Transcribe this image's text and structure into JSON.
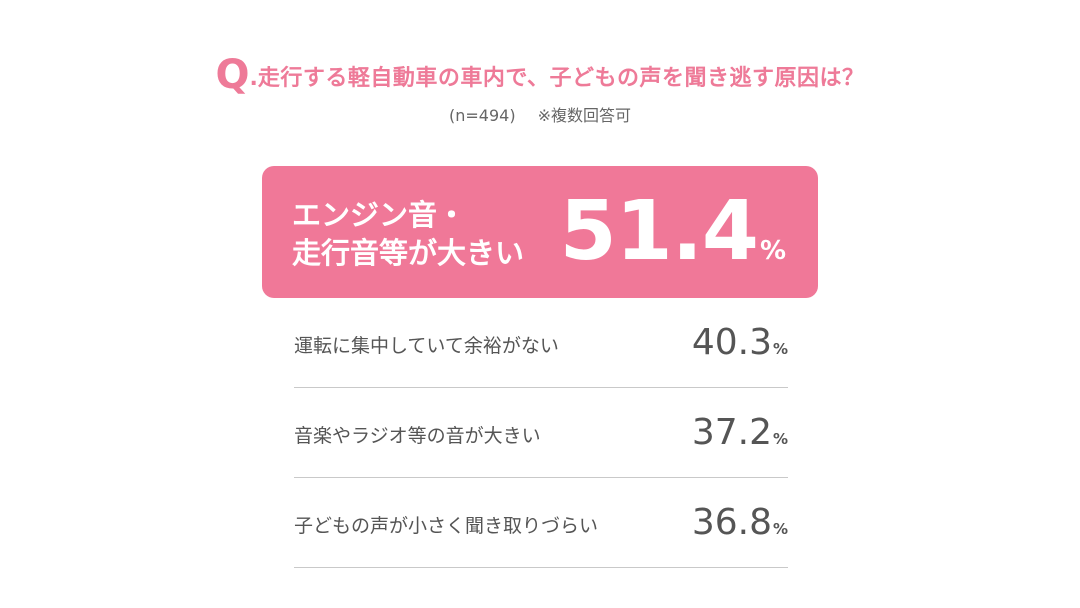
{
  "question": {
    "prefix": "Q",
    "dot": ".",
    "text": "走行する軽自動車の車内で、子どもの声を聞き逃す原因は？"
  },
  "sample": {
    "n": "(n=494)",
    "note": "※複数回答可"
  },
  "colors": {
    "accent": "#f07898",
    "title": "#ee7a98",
    "text": "#555555",
    "divider": "#c9c9c9"
  },
  "chart_data": {
    "type": "table",
    "unit": "%",
    "categories": [
      "エンジン音・走行音等が大きい",
      "運転に集中していて余裕がない",
      "音楽やラジオ等の音が大きい",
      "子どもの声が小さく聞き取りづらい"
    ],
    "values": [
      51.4,
      40.3,
      37.2,
      36.8
    ],
    "top": {
      "label_line1": "エンジン音・",
      "label_line2": "走行音等が大きい",
      "value_int": "51",
      "value_dec": ".4",
      "pct": "%"
    },
    "rows": [
      {
        "label": "運転に集中していて余裕がない",
        "value": "40.3",
        "pct": "%"
      },
      {
        "label": "音楽やラジオ等の音が大きい",
        "value": "37.2",
        "pct": "%"
      },
      {
        "label": "子どもの声が小さく聞き取りづらい",
        "value": "36.8",
        "pct": "%"
      }
    ]
  }
}
